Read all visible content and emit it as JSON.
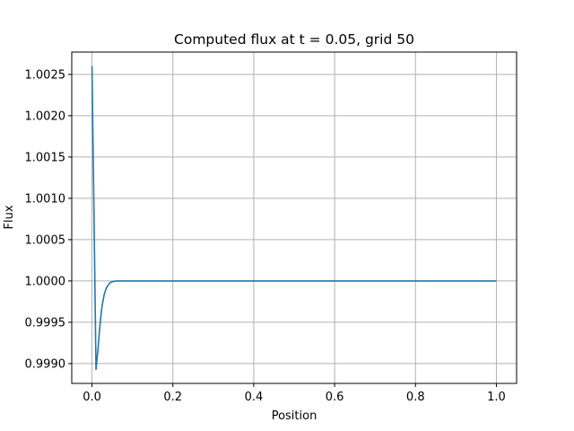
{
  "chart_data": {
    "type": "line",
    "title": "Computed flux at t = 0.05, grid 50",
    "xlabel": "Position",
    "ylabel": "Flux",
    "xlim": [
      -0.05,
      1.05
    ],
    "ylim": [
      0.99876,
      1.00277
    ],
    "x_ticks": [
      0.0,
      0.2,
      0.4,
      0.6,
      0.8,
      1.0
    ],
    "x_tick_labels": [
      "0.0",
      "0.2",
      "0.4",
      "0.6",
      "0.8",
      "1.0"
    ],
    "y_ticks": [
      0.999,
      0.9995,
      1.0,
      1.0005,
      1.001,
      1.0015,
      1.002,
      1.0025
    ],
    "y_tick_labels": [
      "0.9990",
      "0.9995",
      "1.0000",
      "1.0005",
      "1.0010",
      "1.0015",
      "1.0020",
      "1.0025"
    ],
    "grid": true,
    "color": "#1f77b4",
    "series": [
      {
        "x": [
          0.0,
          0.005,
          0.01,
          0.015,
          0.02,
          0.025,
          0.03,
          0.035,
          0.04,
          0.045,
          0.05,
          0.06,
          0.07,
          0.08,
          0.1,
          0.2,
          0.4,
          0.6,
          0.8,
          1.0
        ],
        "y": [
          1.0026,
          1.0008,
          0.99893,
          0.99918,
          0.99948,
          0.9997,
          0.99983,
          0.99991,
          0.99995,
          0.99998,
          0.99999,
          1.0,
          1.0,
          1.0,
          1.0,
          1.0,
          1.0,
          1.0,
          1.0,
          1.0
        ]
      }
    ]
  }
}
